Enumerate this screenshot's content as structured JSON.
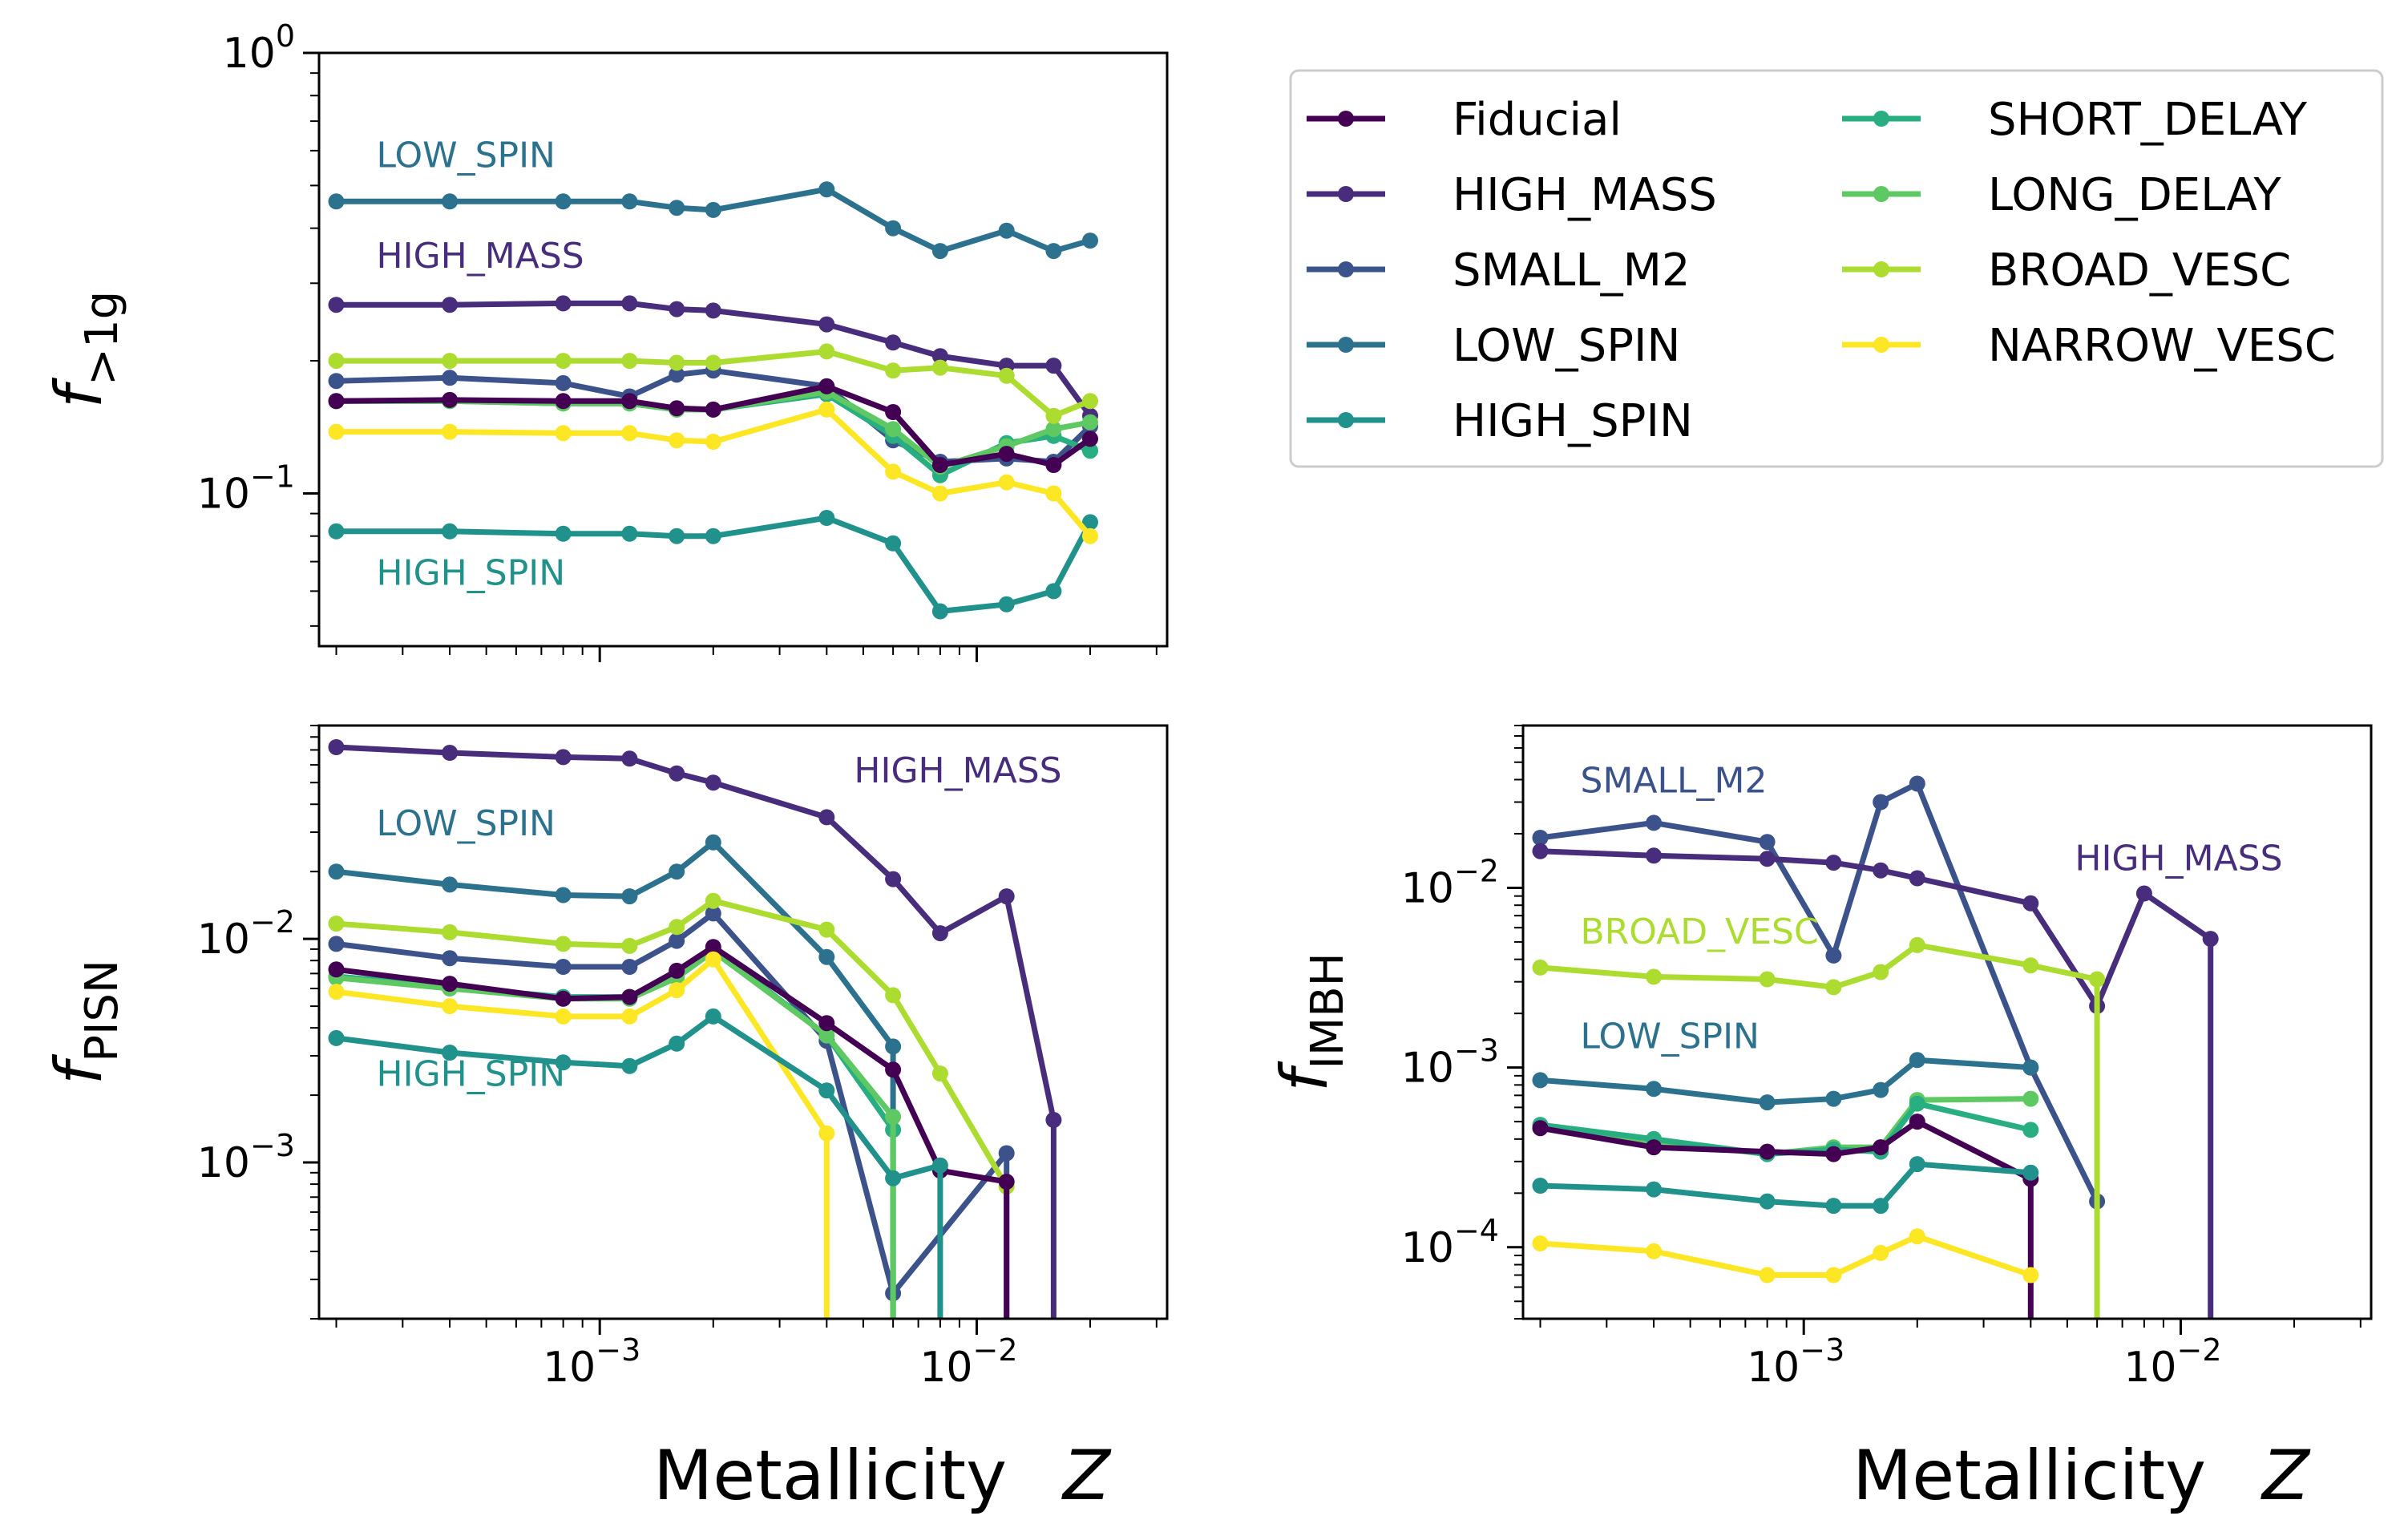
{
  "figure": {
    "xlabel": "Metallicity",
    "xlabel_symbol": "Z"
  },
  "series_colors": {
    "Fiducial": "#440154",
    "HIGH_MASS": "#472d7b",
    "SMALL_M2": "#3b528b",
    "LOW_SPIN": "#2c728e",
    "HIGH_SPIN": "#21918c",
    "SHORT_DELAY": "#28ae80",
    "LONG_DELAY": "#5ec962",
    "BROAD_VESC": "#addc30",
    "NARROW_VESC": "#fde725"
  },
  "legend": {
    "entries": [
      "Fiducial",
      "HIGH_MASS",
      "SMALL_M2",
      "LOW_SPIN",
      "HIGH_SPIN",
      "SHORT_DELAY",
      "LONG_DELAY",
      "BROAD_VESC",
      "NARROW_VESC"
    ]
  },
  "chart_data": [
    {
      "id": "f1g",
      "type": "line",
      "ylabel": "f",
      "ylabel_sub": ">1g",
      "xscale": "log",
      "yscale": "log",
      "xlim": [
        0.00018,
        0.032
      ],
      "ylim": [
        0.045,
        1.0
      ],
      "xticks": [],
      "yticks": [
        {
          "v": 1.0,
          "m": "10",
          "e": "0"
        },
        {
          "v": 0.1,
          "m": "10",
          "e": "−1"
        }
      ],
      "annotations": [
        {
          "text": "LOW_SPIN",
          "series": "LOW_SPIN",
          "x": 0.0002,
          "y": 0.55
        },
        {
          "text": "HIGH_MASS",
          "series": "HIGH_MASS",
          "x": 0.0002,
          "y": 0.325
        },
        {
          "text": "HIGH_SPIN",
          "series": "HIGH_SPIN",
          "x": 0.0002,
          "y": 0.062
        }
      ],
      "series": [
        {
          "name": "LOW_SPIN",
          "x": [
            0.0002,
            0.0004,
            0.0008,
            0.0012,
            0.0016,
            0.002,
            0.004,
            0.006,
            0.008,
            0.012,
            0.016,
            0.02
          ],
          "y": [
            0.46,
            0.46,
            0.46,
            0.46,
            0.445,
            0.44,
            0.49,
            0.4,
            0.355,
            0.395,
            0.355,
            0.375
          ]
        },
        {
          "name": "HIGH_MASS",
          "x": [
            0.0002,
            0.0004,
            0.0008,
            0.0012,
            0.0016,
            0.002,
            0.004,
            0.006,
            0.008,
            0.012,
            0.016,
            0.02
          ],
          "y": [
            0.268,
            0.268,
            0.27,
            0.27,
            0.262,
            0.26,
            0.242,
            0.22,
            0.205,
            0.195,
            0.195,
            0.15
          ]
        },
        {
          "name": "SMALL_M2",
          "x": [
            0.0002,
            0.0004,
            0.0008,
            0.0012,
            0.0016,
            0.002,
            0.004,
            0.006,
            0.008,
            0.012,
            0.016,
            0.02
          ],
          "y": [
            0.18,
            0.183,
            0.178,
            0.166,
            0.186,
            0.19,
            0.175,
            0.132,
            0.118,
            0.12,
            0.118,
            0.142
          ]
        },
        {
          "name": "HIGH_SPIN",
          "x": [
            0.0002,
            0.0004,
            0.0008,
            0.0012,
            0.0016,
            0.002,
            0.004,
            0.006,
            0.008,
            0.012,
            0.016,
            0.02
          ],
          "y": [
            0.082,
            0.082,
            0.081,
            0.081,
            0.08,
            0.08,
            0.088,
            0.077,
            0.054,
            0.056,
            0.06,
            0.086
          ]
        },
        {
          "name": "SHORT_DELAY",
          "x": [
            0.0002,
            0.0004,
            0.0008,
            0.0012,
            0.0016,
            0.002,
            0.004,
            0.006,
            0.008,
            0.012,
            0.016,
            0.02
          ],
          "y": [
            0.162,
            0.162,
            0.16,
            0.16,
            0.155,
            0.155,
            0.168,
            0.135,
            0.11,
            0.13,
            0.135,
            0.125
          ]
        },
        {
          "name": "LONG_DELAY",
          "x": [
            0.0002,
            0.0004,
            0.0008,
            0.0012,
            0.0016,
            0.002,
            0.004,
            0.006,
            0.008,
            0.012,
            0.016,
            0.02
          ],
          "y": [
            0.162,
            0.162,
            0.16,
            0.16,
            0.155,
            0.155,
            0.17,
            0.14,
            0.115,
            0.128,
            0.14,
            0.145
          ]
        },
        {
          "name": "BROAD_VESC",
          "x": [
            0.0002,
            0.0004,
            0.0008,
            0.0012,
            0.0016,
            0.002,
            0.004,
            0.006,
            0.008,
            0.012,
            0.016,
            0.02
          ],
          "y": [
            0.2,
            0.2,
            0.2,
            0.2,
            0.198,
            0.198,
            0.21,
            0.19,
            0.193,
            0.185,
            0.15,
            0.162
          ]
        },
        {
          "name": "NARROW_VESC",
          "x": [
            0.0002,
            0.0004,
            0.0008,
            0.0012,
            0.0016,
            0.002,
            0.004,
            0.006,
            0.008,
            0.012,
            0.016,
            0.02
          ],
          "y": [
            0.138,
            0.138,
            0.137,
            0.137,
            0.132,
            0.131,
            0.155,
            0.112,
            0.1,
            0.106,
            0.1,
            0.08
          ]
        },
        {
          "name": "Fiducial",
          "x": [
            0.0002,
            0.0004,
            0.0008,
            0.0012,
            0.0016,
            0.002,
            0.004,
            0.006,
            0.008,
            0.012,
            0.016,
            0.02
          ],
          "y": [
            0.162,
            0.163,
            0.162,
            0.162,
            0.156,
            0.155,
            0.175,
            0.153,
            0.116,
            0.123,
            0.116,
            0.133
          ]
        }
      ]
    },
    {
      "id": "fpisn",
      "type": "line",
      "ylabel": "f",
      "ylabel_sub": "PISN",
      "xscale": "log",
      "yscale": "log",
      "xlim": [
        0.00018,
        0.032
      ],
      "ylim": [
        0.0002,
        0.09
      ],
      "xticks": [
        {
          "v": 0.001,
          "m": "10",
          "e": "−3"
        },
        {
          "v": 0.01,
          "m": "10",
          "e": "−2"
        }
      ],
      "yticks": [
        {
          "v": 0.01,
          "m": "10",
          "e": "−2"
        },
        {
          "v": 0.001,
          "m": "10",
          "e": "−3"
        }
      ],
      "annotations": [
        {
          "text": "HIGH_MASS",
          "series": "HIGH_MASS",
          "x": 0.0037,
          "y": 0.05
        },
        {
          "text": "LOW_SPIN",
          "series": "LOW_SPIN",
          "x": 0.0002,
          "y": 0.029
        },
        {
          "text": "HIGH_SPIN",
          "series": "HIGH_SPIN",
          "x": 0.0002,
          "y": 0.0022
        }
      ],
      "series": [
        {
          "name": "HIGH_MASS",
          "x": [
            0.0002,
            0.0004,
            0.0008,
            0.0012,
            0.0016,
            0.002,
            0.004,
            0.006,
            0.008,
            0.012,
            0.016,
            0.016
          ],
          "y": [
            0.072,
            0.068,
            0.065,
            0.064,
            0.055,
            0.05,
            0.035,
            0.0185,
            0.0106,
            0.0155,
            0.00155,
            0.0001
          ]
        },
        {
          "name": "LOW_SPIN",
          "x": [
            0.0002,
            0.0004,
            0.0008,
            0.0012,
            0.0016,
            0.002,
            0.004,
            0.006,
            0.006
          ],
          "y": [
            0.02,
            0.0175,
            0.0157,
            0.0155,
            0.02,
            0.027,
            0.0083,
            0.0033,
            0.0001
          ]
        },
        {
          "name": "SMALL_M2",
          "x": [
            0.0002,
            0.0004,
            0.0008,
            0.0012,
            0.0016,
            0.002,
            0.004,
            0.006,
            0.012,
            0.012
          ],
          "y": [
            0.0095,
            0.0082,
            0.0075,
            0.0075,
            0.0098,
            0.013,
            0.0035,
            0.00026,
            0.0011,
            0.0001
          ]
        },
        {
          "name": "BROAD_VESC",
          "x": [
            0.0002,
            0.0004,
            0.0008,
            0.0012,
            0.0016,
            0.002,
            0.004,
            0.006,
            0.008,
            0.012
          ],
          "y": [
            0.0117,
            0.0107,
            0.0095,
            0.0093,
            0.0113,
            0.0148,
            0.011,
            0.0056,
            0.0025,
            0.00078
          ]
        },
        {
          "name": "SHORT_DELAY",
          "x": [
            0.0002,
            0.0004,
            0.0008,
            0.0012,
            0.0016,
            0.002,
            0.004,
            0.006,
            0.006
          ],
          "y": [
            0.0068,
            0.0061,
            0.0055,
            0.0055,
            0.0068,
            0.009,
            0.0037,
            0.0014,
            0.0001
          ]
        },
        {
          "name": "LONG_DELAY",
          "x": [
            0.0002,
            0.0004,
            0.0008,
            0.0012,
            0.0016,
            0.002,
            0.004,
            0.006,
            0.006
          ],
          "y": [
            0.0067,
            0.006,
            0.0054,
            0.0054,
            0.0067,
            0.0088,
            0.0037,
            0.0016,
            0.0001
          ]
        },
        {
          "name": "Fiducial",
          "x": [
            0.0002,
            0.0004,
            0.0008,
            0.0012,
            0.0016,
            0.002,
            0.004,
            0.006,
            0.008,
            0.012,
            0.012
          ],
          "y": [
            0.0073,
            0.0063,
            0.0054,
            0.0055,
            0.0072,
            0.0092,
            0.0042,
            0.0026,
            0.00092,
            0.00082,
            0.0001
          ]
        },
        {
          "name": "NARROW_VESC",
          "x": [
            0.0002,
            0.0004,
            0.0008,
            0.0012,
            0.0016,
            0.002,
            0.004,
            0.004
          ],
          "y": [
            0.0058,
            0.005,
            0.0045,
            0.0045,
            0.0059,
            0.0081,
            0.00135,
            0.0001
          ]
        },
        {
          "name": "HIGH_SPIN",
          "x": [
            0.0002,
            0.0004,
            0.0008,
            0.0012,
            0.0016,
            0.002,
            0.004,
            0.006,
            0.008,
            0.008
          ],
          "y": [
            0.0036,
            0.0031,
            0.0028,
            0.0027,
            0.0034,
            0.0045,
            0.0021,
            0.00085,
            0.00097,
            0.0001
          ]
        }
      ]
    },
    {
      "id": "fimbh",
      "type": "line",
      "ylabel": "f",
      "ylabel_sub": "IMBH",
      "xscale": "log",
      "yscale": "log",
      "xlim": [
        0.00018,
        0.032
      ],
      "ylim": [
        4e-05,
        0.08
      ],
      "xticks": [
        {
          "v": 0.001,
          "m": "10",
          "e": "−3"
        },
        {
          "v": 0.01,
          "m": "10",
          "e": "−2"
        }
      ],
      "yticks": [
        {
          "v": 0.01,
          "m": "10",
          "e": "−2"
        },
        {
          "v": 0.001,
          "m": "10",
          "e": "−3"
        },
        {
          "v": 0.0001,
          "m": "10",
          "e": "−4"
        }
      ],
      "annotations": [
        {
          "text": "SMALL_M2",
          "series": "SMALL_M2",
          "x": 0.0002,
          "y": 0.034
        },
        {
          "text": "HIGH_MASS",
          "series": "HIGH_MASS",
          "x": 0.0041,
          "y": 0.0125
        },
        {
          "text": "BROAD_VESC",
          "series": "BROAD_VESC",
          "x": 0.0002,
          "y": 0.0049
        },
        {
          "text": "LOW_SPIN",
          "series": "LOW_SPIN",
          "x": 0.0002,
          "y": 0.00128
        }
      ],
      "series": [
        {
          "name": "SMALL_M2",
          "x": [
            0.0002,
            0.0004,
            0.0008,
            0.0012,
            0.0016,
            0.002,
            0.004,
            0.006
          ],
          "y": [
            0.019,
            0.023,
            0.018,
            0.0042,
            0.03,
            0.038,
            0.001,
            0.00018
          ]
        },
        {
          "name": "HIGH_MASS",
          "x": [
            0.0002,
            0.0004,
            0.0008,
            0.0012,
            0.0016,
            0.002,
            0.004,
            0.006,
            0.008,
            0.012,
            0.012
          ],
          "y": [
            0.016,
            0.0151,
            0.0145,
            0.0138,
            0.0125,
            0.0113,
            0.0082,
            0.0022,
            0.0093,
            0.0052,
            1e-05
          ]
        },
        {
          "name": "BROAD_VESC",
          "x": [
            0.0002,
            0.0004,
            0.0008,
            0.0012,
            0.0016,
            0.002,
            0.004,
            0.006,
            0.006
          ],
          "y": [
            0.0036,
            0.0032,
            0.0031,
            0.0028,
            0.0034,
            0.0048,
            0.0037,
            0.0031,
            1e-05
          ]
        },
        {
          "name": "LOW_SPIN",
          "x": [
            0.0002,
            0.0004,
            0.0008,
            0.0012,
            0.0016,
            0.002,
            0.004
          ],
          "y": [
            0.00085,
            0.00076,
            0.00064,
            0.00067,
            0.00075,
            0.0011,
            0.001
          ]
        },
        {
          "name": "LONG_DELAY",
          "x": [
            0.0002,
            0.0004,
            0.0008,
            0.0012,
            0.0016,
            0.002,
            0.004
          ],
          "y": [
            0.00047,
            0.00039,
            0.00033,
            0.00036,
            0.00036,
            0.00066,
            0.00067
          ]
        },
        {
          "name": "SHORT_DELAY",
          "x": [
            0.0002,
            0.0004,
            0.0008,
            0.0012,
            0.0016,
            0.002,
            0.004
          ],
          "y": [
            0.00048,
            0.0004,
            0.00033,
            0.00035,
            0.00034,
            0.00063,
            0.00045
          ]
        },
        {
          "name": "Fiducial",
          "x": [
            0.0002,
            0.0004,
            0.0008,
            0.0012,
            0.0016,
            0.002,
            0.004,
            0.004
          ],
          "y": [
            0.00046,
            0.00036,
            0.00034,
            0.00033,
            0.00036,
            0.0005,
            0.00024,
            1e-05
          ]
        },
        {
          "name": "HIGH_SPIN",
          "x": [
            0.0002,
            0.0004,
            0.0008,
            0.0012,
            0.0016,
            0.002,
            0.004
          ],
          "y": [
            0.00022,
            0.00021,
            0.00018,
            0.00017,
            0.00017,
            0.00029,
            0.00026
          ]
        },
        {
          "name": "NARROW_VESC",
          "x": [
            0.0002,
            0.0004,
            0.0008,
            0.0012,
            0.0016,
            0.002,
            0.004
          ],
          "y": [
            0.000105,
            9.5e-05,
            7e-05,
            7e-05,
            9.3e-05,
            0.000115,
            7e-05
          ]
        }
      ]
    }
  ]
}
